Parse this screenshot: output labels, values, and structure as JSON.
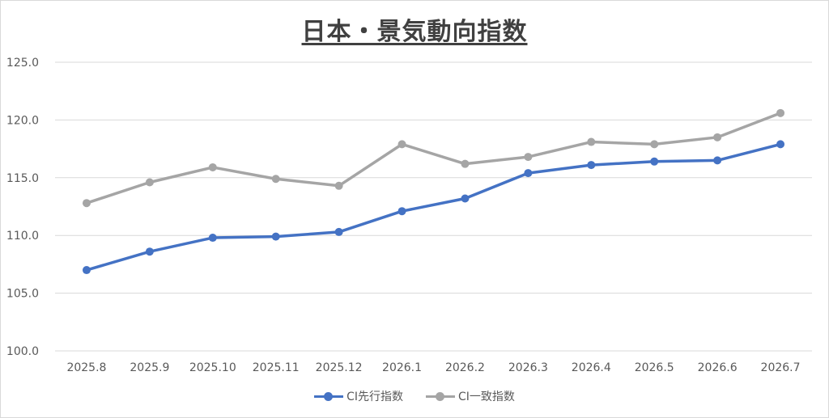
{
  "chart_data": {
    "type": "line",
    "title": "日本・景気動向指数",
    "categories": [
      "2025.8",
      "2025.9",
      "2025.10",
      "2025.11",
      "2025.12",
      "2026.1",
      "2026.2",
      "2026.3",
      "2026.4",
      "2026.5",
      "2026.6",
      "2026.7"
    ],
    "yticks": [
      "100.0",
      "105.0",
      "110.0",
      "115.0",
      "120.0",
      "125.0"
    ],
    "ylim": [
      100,
      125
    ],
    "grid": true,
    "legend_position": "bottom",
    "series": [
      {
        "name": "CI先行指数",
        "color": "#4472c4",
        "values": [
          107.0,
          108.6,
          109.8,
          109.9,
          110.3,
          112.1,
          113.2,
          115.4,
          116.1,
          116.4,
          116.5,
          117.9
        ]
      },
      {
        "name": "CI一致指数",
        "color": "#a5a5a5",
        "values": [
          112.8,
          114.6,
          115.9,
          114.9,
          114.3,
          117.9,
          116.2,
          116.8,
          118.1,
          117.9,
          118.5,
          120.6
        ]
      }
    ]
  }
}
